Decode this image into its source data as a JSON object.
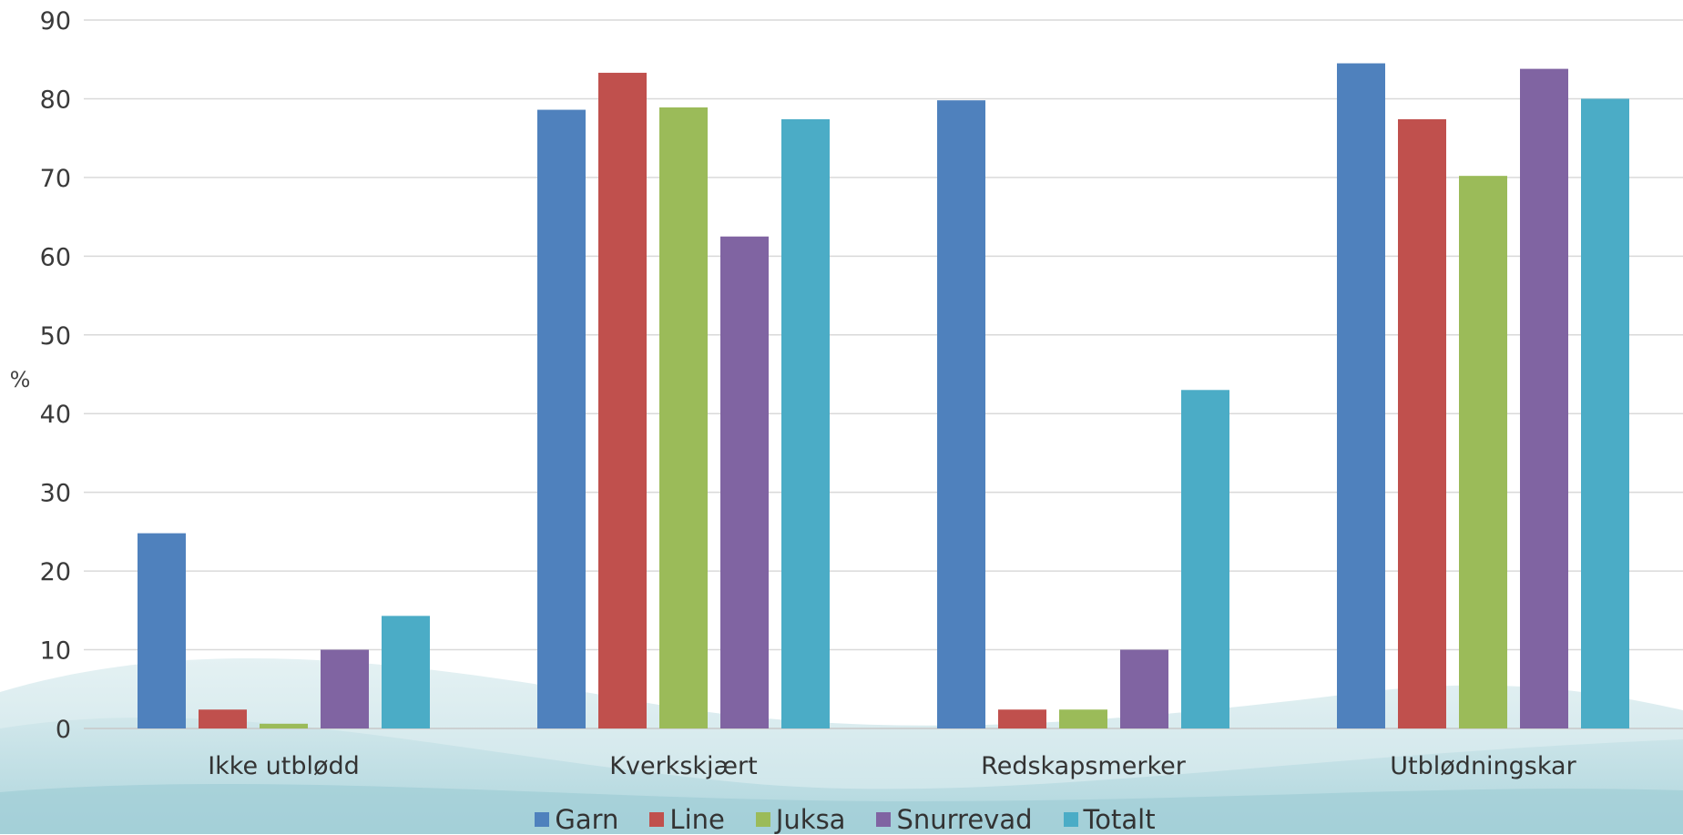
{
  "chart_data": {
    "type": "bar",
    "ylabel": "%",
    "ylim": [
      0,
      90
    ],
    "yticks": [
      "0",
      "10",
      "20",
      "30",
      "40",
      "50",
      "60",
      "70",
      "80",
      "90"
    ],
    "grid": true,
    "legend_position": "bottom",
    "categories": [
      "Ikke utblødd",
      "Kverkskjært",
      "Redskapsmerker",
      "Utblødningskar"
    ],
    "series": [
      {
        "name": "Garn",
        "color": "#4f81bd",
        "values": [
          24.8,
          78.6,
          79.8,
          84.5
        ]
      },
      {
        "name": "Line",
        "color": "#c0504d",
        "values": [
          2.4,
          83.3,
          2.4,
          77.4
        ]
      },
      {
        "name": "Juksa",
        "color": "#9bbb59",
        "values": [
          0.6,
          78.9,
          2.4,
          70.2
        ]
      },
      {
        "name": "Snurrevad",
        "color": "#8064a2",
        "values": [
          10,
          62.5,
          10,
          83.8
        ]
      },
      {
        "name": "Totalt",
        "color": "#4bacc6",
        "values": [
          14.3,
          77.4,
          43.0,
          80.0
        ]
      }
    ]
  }
}
